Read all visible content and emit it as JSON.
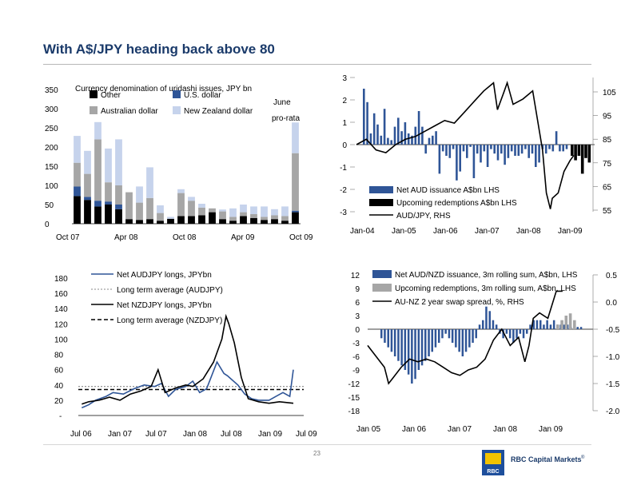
{
  "title": "With A$/JPY heading back above 80",
  "page_number": "23",
  "brand": {
    "name": "RBC Capital Markets",
    "mark": "®",
    "logo_text": "RBC"
  },
  "colors": {
    "navy": "#2f5597",
    "lightblue": "#c6d3ec",
    "gray": "#a6a6a6",
    "black": "#000000",
    "title": "#1a3a6a"
  },
  "chart_data": [
    {
      "id": "uridashi",
      "type": "bar",
      "title": "Currency denomination of uridashi issues, JPY bn",
      "stacked": true,
      "note": [
        "June",
        "pro-rata"
      ],
      "legend_labels": [
        "Other",
        "U.S. dollar",
        "Australian dollar",
        "New Zealand dollar"
      ],
      "y_ticks": [
        "0",
        "50",
        "100",
        "150",
        "200",
        "250",
        "300",
        "350"
      ],
      "ylim": [
        0,
        350
      ],
      "x_ticks": [
        "Oct 07",
        "Apr 08",
        "Oct 08",
        "Apr 09",
        "Oct 09"
      ],
      "series": [
        {
          "name": "Other",
          "color": "#000000",
          "values": [
            72,
            62,
            45,
            50,
            38,
            12,
            10,
            12,
            8,
            13,
            20,
            20,
            22,
            30,
            12,
            8,
            20,
            15,
            10,
            12,
            8,
            30
          ]
        },
        {
          "name": "U.S. dollar",
          "color": "#2f5597",
          "values": [
            25,
            8,
            15,
            8,
            12,
            0,
            0,
            0,
            0,
            0,
            0,
            0,
            0,
            0,
            0,
            0,
            0,
            0,
            0,
            0,
            0,
            4
          ]
        },
        {
          "name": "Australian dollar",
          "color": "#a6a6a6",
          "values": [
            62,
            60,
            160,
            50,
            50,
            70,
            45,
            55,
            20,
            0,
            60,
            40,
            20,
            10,
            20,
            10,
            10,
            10,
            8,
            10,
            12,
            150
          ]
        },
        {
          "name": "New Zealand dollar",
          "color": "#c6d3ec",
          "values": [
            70,
            60,
            45,
            88,
            120,
            0,
            42,
            80,
            20,
            5,
            10,
            10,
            10,
            0,
            5,
            22,
            20,
            20,
            27,
            16,
            25,
            80
          ]
        }
      ]
    },
    {
      "id": "aud-issuance",
      "type": "bar",
      "legend_labels": [
        "Net AUD issuance A$bn LHS",
        "Upcoming redemptions A$bn LHS",
        "AUD/JPY, RHS"
      ],
      "y_left_ticks": [
        "3",
        "2",
        "1",
        "0",
        "-1",
        "-2",
        "-3"
      ],
      "ylim_left": [
        -3,
        3
      ],
      "y_right_ticks": [
        "105",
        "95",
        "85",
        "75",
        "65",
        "55"
      ],
      "ylim_right": [
        55,
        105
      ],
      "x_ticks": [
        "Jan-04",
        "Jan-05",
        "Jan-06",
        "Jan-07",
        "Jan-08",
        "Jan-09"
      ],
      "x_range": [
        2004.0,
        2010.0
      ],
      "net_issuance": [
        2.5,
        1.9,
        0.5,
        1.4,
        0.9,
        0.4,
        1.6,
        0.3,
        0.2,
        0.8,
        1.2,
        0.6,
        1.0,
        0.5,
        0.4,
        0.8,
        1.5,
        0.8,
        -0.4,
        0.3,
        0.4,
        0.6,
        -1.3,
        -0.3,
        -0.5,
        -0.6,
        -0.2,
        -1.6,
        -1.2,
        -0.3,
        -0.6,
        -0.1,
        -1.5,
        -0.4,
        -0.8,
        -0.3,
        -1.0,
        -0.2,
        -0.4,
        -0.7,
        -0.4,
        -0.9,
        -0.6,
        -0.3,
        -0.5,
        -0.5,
        -0.4,
        -0.2,
        -0.6,
        -0.4,
        -1.0,
        -0.8,
        -0.2,
        -0.4,
        -0.2,
        -0.3,
        0.6,
        -0.3,
        -0.3,
        -0.2
      ],
      "redemptions": [
        -0.5,
        -0.7,
        -0.5,
        -1.3,
        -0.6,
        -0.8
      ],
      "audjpy": [
        [
          2004.0,
          80
        ],
        [
          2004.25,
          82
        ],
        [
          2004.5,
          78
        ],
        [
          2004.75,
          77
        ],
        [
          2005.0,
          80
        ],
        [
          2005.25,
          82
        ],
        [
          2005.5,
          83
        ],
        [
          2005.75,
          85
        ],
        [
          2006.0,
          87
        ],
        [
          2006.25,
          89
        ],
        [
          2006.5,
          88
        ],
        [
          2006.75,
          92
        ],
        [
          2007.0,
          96
        ],
        [
          2007.25,
          100
        ],
        [
          2007.5,
          103
        ],
        [
          2007.6,
          93
        ],
        [
          2007.75,
          99
        ],
        [
          2007.85,
          103
        ],
        [
          2008.0,
          95
        ],
        [
          2008.25,
          97
        ],
        [
          2008.5,
          100
        ],
        [
          2008.75,
          78
        ],
        [
          2008.85,
          62
        ],
        [
          2008.95,
          56
        ],
        [
          2009.0,
          60
        ],
        [
          2009.15,
          62
        ],
        [
          2009.3,
          70
        ],
        [
          2009.45,
          74
        ],
        [
          2009.55,
          76
        ]
      ]
    },
    {
      "id": "jpy-longs",
      "type": "line",
      "legend_labels": [
        "Net AUDJPY longs, JPYbn",
        "Long term average (AUDJPY)",
        "Net NZDJPY longs, JPYbn",
        "Long term average (NZDJPY)"
      ],
      "y_ticks": [
        "-",
        "20",
        "40",
        "60",
        "80",
        "100",
        "120",
        "140",
        "160",
        "180"
      ],
      "ylim": [
        0,
        180
      ],
      "x_ticks": [
        "Jul 06",
        "Jan 07",
        "Jul 07",
        "Jan 08",
        "Jul 08",
        "Jan 09",
        "Jul 09"
      ],
      "x_range": [
        2006.35,
        2009.6
      ],
      "audjpy_longs": [
        [
          2006.4,
          10
        ],
        [
          2006.5,
          14
        ],
        [
          2006.6,
          20
        ],
        [
          2006.75,
          25
        ],
        [
          2006.85,
          30
        ],
        [
          2007.0,
          28
        ],
        [
          2007.15,
          35
        ],
        [
          2007.3,
          40
        ],
        [
          2007.45,
          38
        ],
        [
          2007.55,
          42
        ],
        [
          2007.65,
          25
        ],
        [
          2007.75,
          34
        ],
        [
          2007.9,
          38
        ],
        [
          2008.0,
          45
        ],
        [
          2008.1,
          30
        ],
        [
          2008.2,
          35
        ],
        [
          2008.35,
          70
        ],
        [
          2008.45,
          55
        ],
        [
          2008.5,
          52
        ],
        [
          2008.55,
          48
        ],
        [
          2008.65,
          40
        ],
        [
          2008.75,
          28
        ],
        [
          2008.85,
          22
        ],
        [
          2008.95,
          20
        ],
        [
          2009.1,
          20
        ],
        [
          2009.2,
          25
        ],
        [
          2009.3,
          30
        ],
        [
          2009.4,
          25
        ],
        [
          2009.45,
          60
        ]
      ],
      "audjpy_avg": 38,
      "nzdjpy_longs": [
        [
          2006.4,
          15
        ],
        [
          2006.5,
          18
        ],
        [
          2006.65,
          20
        ],
        [
          2006.8,
          24
        ],
        [
          2006.95,
          20
        ],
        [
          2007.1,
          28
        ],
        [
          2007.25,
          32
        ],
        [
          2007.4,
          38
        ],
        [
          2007.5,
          60
        ],
        [
          2007.6,
          30
        ],
        [
          2007.75,
          36
        ],
        [
          2007.9,
          40
        ],
        [
          2008.0,
          38
        ],
        [
          2008.15,
          48
        ],
        [
          2008.3,
          70
        ],
        [
          2008.42,
          100
        ],
        [
          2008.48,
          130
        ],
        [
          2008.52,
          120
        ],
        [
          2008.6,
          95
        ],
        [
          2008.7,
          50
        ],
        [
          2008.8,
          22
        ],
        [
          2008.95,
          18
        ],
        [
          2009.1,
          16
        ],
        [
          2009.25,
          18
        ],
        [
          2009.45,
          16
        ]
      ],
      "nzdjpy_avg": 34
    },
    {
      "id": "aud-nzd-issuance",
      "type": "bar",
      "legend_labels": [
        "Net AUD/NZD issuance, 3m rolling sum, A$bn, LHS",
        "Upcoming redemptions, 3m rolling sum, A$bn, LHS",
        "AU-NZ 2 year swap spread, %, RHS"
      ],
      "y_left_ticks": [
        "12",
        "9",
        "6",
        "3",
        "0",
        "-3",
        "-6",
        "-9",
        "-12",
        "-15",
        "-18"
      ],
      "ylim_left": [
        -18,
        12
      ],
      "y_right_ticks": [
        "0.5",
        "0.0",
        "-0.5",
        "-1.0",
        "-1.5",
        "-2.0"
      ],
      "ylim_right": [
        -2.0,
        0.5
      ],
      "x_ticks": [
        "Jan 05",
        "Jan 06",
        "Jan 07",
        "Jan 08",
        "Jan 09"
      ],
      "x_range": [
        2005.0,
        2010.3
      ],
      "net_issuance": [
        -2,
        -3,
        -4,
        -5,
        -6,
        -7,
        -8,
        -9,
        -10,
        -12,
        -11,
        -9,
        -8,
        -7,
        -6,
        -5,
        -4,
        -3,
        -2,
        -1,
        -2,
        -3,
        -4,
        -5,
        -6,
        -5,
        -4,
        -3,
        -2,
        1,
        2,
        5,
        4,
        2,
        1,
        -1,
        -2,
        -1,
        -2,
        -3,
        -2,
        -1,
        -2,
        -1,
        1,
        2,
        2,
        2,
        1,
        2,
        1,
        2,
        1,
        1,
        1,
        1,
        0.5,
        0.5,
        0.5,
        0.5
      ],
      "redemptions": [
        [
          2009.5,
          1
        ],
        [
          2009.6,
          2
        ],
        [
          2009.7,
          3
        ],
        [
          2009.8,
          3.5
        ],
        [
          2009.9,
          2
        ]
      ],
      "swap_spread": [
        [
          2005.0,
          -0.8
        ],
        [
          2005.2,
          -1.0
        ],
        [
          2005.4,
          -1.2
        ],
        [
          2005.5,
          -1.5
        ],
        [
          2005.6,
          -1.4
        ],
        [
          2005.8,
          -1.2
        ],
        [
          2006.0,
          -1.05
        ],
        [
          2006.2,
          -1.1
        ],
        [
          2006.4,
          -1.05
        ],
        [
          2006.6,
          -1.1
        ],
        [
          2006.8,
          -1.2
        ],
        [
          2007.0,
          -1.3
        ],
        [
          2007.2,
          -1.35
        ],
        [
          2007.4,
          -1.25
        ],
        [
          2007.6,
          -1.2
        ],
        [
          2007.8,
          -1.05
        ],
        [
          2008.0,
          -0.7
        ],
        [
          2008.2,
          -0.5
        ],
        [
          2008.4,
          -0.8
        ],
        [
          2008.6,
          -0.65
        ],
        [
          2008.75,
          -1.1
        ],
        [
          2008.85,
          -0.8
        ],
        [
          2008.95,
          -0.3
        ],
        [
          2009.1,
          -0.2
        ],
        [
          2009.3,
          -0.3
        ],
        [
          2009.5,
          0.2
        ],
        [
          2009.65,
          0.2
        ]
      ]
    }
  ]
}
